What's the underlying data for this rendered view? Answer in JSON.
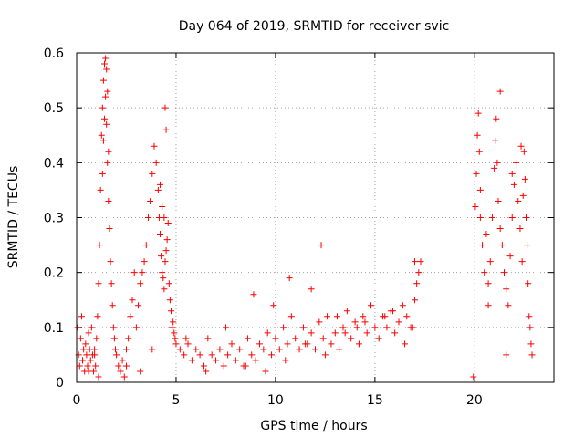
{
  "chart_data": {
    "type": "scatter",
    "title": "Day 064 of 2019, SRMTID for receiver svic",
    "xlabel": "GPS time / hours",
    "ylabel": "SRMTID / TECUs",
    "xlim": [
      0,
      24
    ],
    "ylim": [
      0,
      0.6
    ],
    "x_ticks": [
      0,
      5,
      10,
      15,
      20
    ],
    "y_ticks": [
      0,
      0.1,
      0.2,
      0.3,
      0.4,
      0.5,
      0.6
    ],
    "x_tick_labels": [
      "0",
      "5",
      "10",
      "15",
      "20"
    ],
    "y_tick_labels": [
      "0",
      "0.1",
      "0.2",
      "0.3",
      "0.4",
      "0.5",
      "0.6"
    ],
    "grid": true,
    "marker": "+",
    "color": "#ff0000",
    "series": [
      {
        "name": "SRMTID",
        "x": [
          0.05,
          0.1,
          0.15,
          0.2,
          0.25,
          0.3,
          0.35,
          0.4,
          0.45,
          0.5,
          0.55,
          0.6,
          0.65,
          0.7,
          0.75,
          0.8,
          0.85,
          0.9,
          0.95,
          1.0,
          1.05,
          1.1,
          1.15,
          1.2,
          1.25,
          1.3,
          1.35,
          1.4,
          1.45,
          1.5,
          1.55,
          1.6,
          1.65,
          1.7,
          1.75,
          1.8,
          1.85,
          1.9,
          1.95,
          2.0,
          2.1,
          2.2,
          2.3,
          2.4,
          2.5,
          2.6,
          2.7,
          2.8,
          2.9,
          3.0,
          3.1,
          3.2,
          3.3,
          3.4,
          3.5,
          3.6,
          3.7,
          3.8,
          3.9,
          4.0,
          4.1,
          4.15,
          4.2,
          4.25,
          4.3,
          4.35,
          4.4,
          4.45,
          4.5,
          4.55,
          4.6,
          4.65,
          4.7,
          4.75,
          4.8,
          4.85,
          4.9,
          4.95,
          5.0,
          5.2,
          5.4,
          5.6,
          5.8,
          6.0,
          6.2,
          6.4,
          6.6,
          6.8,
          7.0,
          7.2,
          7.4,
          7.6,
          7.8,
          8.0,
          8.2,
          8.4,
          8.6,
          8.8,
          9.0,
          9.2,
          9.4,
          9.6,
          9.8,
          10.0,
          10.2,
          10.4,
          10.6,
          10.8,
          11.0,
          11.2,
          11.4,
          11.6,
          11.8,
          12.0,
          12.2,
          12.4,
          12.6,
          12.8,
          13.0,
          13.2,
          13.4,
          13.6,
          13.8,
          14.0,
          14.2,
          14.4,
          14.6,
          14.8,
          15.0,
          15.2,
          15.4,
          15.6,
          15.8,
          16.0,
          16.2,
          16.4,
          16.6,
          16.8,
          17.0,
          17.1,
          17.2,
          17.3,
          19.95,
          20.05,
          20.1,
          20.15,
          20.2,
          20.25,
          20.3,
          20.4,
          20.5,
          20.6,
          20.7,
          20.8,
          20.9,
          21.0,
          21.05,
          21.1,
          21.15,
          21.2,
          21.3,
          21.4,
          21.5,
          21.6,
          21.7,
          21.8,
          21.9,
          22.0,
          22.1,
          22.2,
          22.3,
          22.4,
          22.45,
          22.5,
          22.55,
          22.6,
          22.65,
          22.7,
          22.75,
          22.8,
          22.85,
          22.9,
          1.45,
          1.5,
          1.55,
          1.4,
          1.35,
          1.6,
          1.3,
          4.45,
          4.5,
          4.2,
          4.3,
          4.4,
          0.3,
          0.6,
          0.9,
          1.1,
          2.5,
          3.2,
          3.8,
          5.5,
          6.5,
          7.5,
          8.5,
          9.5,
          10.5,
          11.5,
          12.5,
          13.5,
          14.5,
          15.5,
          16.5,
          17.0,
          12.3,
          11.8,
          14.1,
          8.9,
          9.9,
          10.7,
          13.1,
          15.9,
          16.9,
          20.3,
          21.3,
          21.9,
          22.35,
          20.7,
          21.6
        ],
        "y": [
          0.1,
          0.05,
          0.03,
          0.08,
          0.12,
          0.04,
          0.06,
          0.02,
          0.07,
          0.05,
          0.03,
          0.09,
          0.06,
          0.04,
          0.1,
          0.05,
          0.02,
          0.06,
          0.03,
          0.08,
          0.12,
          0.18,
          0.25,
          0.35,
          0.45,
          0.5,
          0.55,
          0.58,
          0.52,
          0.47,
          0.4,
          0.33,
          0.28,
          0.22,
          0.18,
          0.14,
          0.1,
          0.08,
          0.06,
          0.05,
          0.03,
          0.02,
          0.04,
          0.01,
          0.06,
          0.08,
          0.12,
          0.15,
          0.2,
          0.1,
          0.14,
          0.18,
          0.2,
          0.22,
          0.25,
          0.3,
          0.33,
          0.38,
          0.43,
          0.4,
          0.35,
          0.3,
          0.27,
          0.23,
          0.2,
          0.19,
          0.17,
          0.22,
          0.24,
          0.26,
          0.29,
          0.18,
          0.15,
          0.13,
          0.1,
          0.11,
          0.09,
          0.08,
          0.07,
          0.06,
          0.05,
          0.07,
          0.04,
          0.06,
          0.05,
          0.03,
          0.08,
          0.05,
          0.04,
          0.06,
          0.03,
          0.05,
          0.07,
          0.04,
          0.06,
          0.03,
          0.08,
          0.05,
          0.04,
          0.07,
          0.06,
          0.09,
          0.05,
          0.08,
          0.06,
          0.1,
          0.07,
          0.12,
          0.08,
          0.06,
          0.1,
          0.07,
          0.09,
          0.06,
          0.11,
          0.08,
          0.12,
          0.07,
          0.09,
          0.06,
          0.1,
          0.13,
          0.08,
          0.11,
          0.07,
          0.12,
          0.09,
          0.14,
          0.1,
          0.08,
          0.12,
          0.1,
          0.13,
          0.09,
          0.11,
          0.14,
          0.12,
          0.1,
          0.15,
          0.18,
          0.2,
          0.22,
          0.01,
          0.32,
          0.38,
          0.45,
          0.49,
          0.42,
          0.3,
          0.25,
          0.2,
          0.27,
          0.18,
          0.22,
          0.3,
          0.39,
          0.44,
          0.48,
          0.4,
          0.33,
          0.28,
          0.25,
          0.2,
          0.17,
          0.14,
          0.23,
          0.3,
          0.36,
          0.4,
          0.33,
          0.28,
          0.22,
          0.34,
          0.42,
          0.37,
          0.3,
          0.25,
          0.18,
          0.12,
          0.1,
          0.07,
          0.05,
          0.59,
          0.57,
          0.53,
          0.48,
          0.44,
          0.42,
          0.38,
          0.5,
          0.46,
          0.36,
          0.32,
          0.3,
          0.04,
          0.02,
          0.05,
          0.01,
          0.03,
          0.02,
          0.06,
          0.08,
          0.02,
          0.1,
          0.03,
          0.02,
          0.04,
          0.07,
          0.05,
          0.09,
          0.11,
          0.12,
          0.07,
          0.22,
          0.25,
          0.17,
          0.1,
          0.16,
          0.14,
          0.19,
          0.12,
          0.13,
          0.1,
          0.35,
          0.53,
          0.38,
          0.43,
          0.14,
          0.05
        ]
      }
    ]
  }
}
